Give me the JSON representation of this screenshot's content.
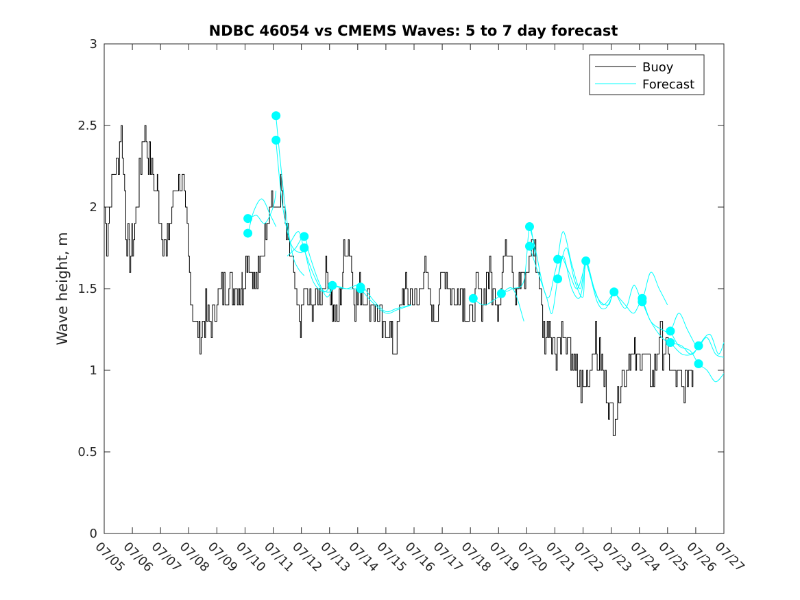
{
  "chart_data": {
    "type": "line",
    "title": "NDBC 46054 vs CMEMS Waves: 5 to 7 day forecast",
    "xlabel": "",
    "ylabel": "Wave height, m",
    "ylim": [
      0,
      3
    ],
    "yticks": [
      "0",
      "0.5",
      "1",
      "1.5",
      "2",
      "2.5",
      "3"
    ],
    "xlim_days": [
      5,
      27
    ],
    "xticks": [
      "07/05",
      "07/06",
      "07/07",
      "07/08",
      "07/09",
      "07/10",
      "07/11",
      "07/12",
      "07/13",
      "07/14",
      "07/15",
      "07/16",
      "07/17",
      "07/18",
      "07/19",
      "07/20",
      "07/21",
      "07/22",
      "07/23",
      "07/24",
      "07/25",
      "07/26",
      "07/27"
    ],
    "legend_position": "top-right",
    "legend": [
      "Buoy",
      "Forecast"
    ],
    "colors": {
      "buoy": "#000000",
      "forecast": "#00ffff",
      "axis": "#262626"
    },
    "buoy": {
      "name": "Buoy",
      "anchors": [
        [
          5.0,
          2.0
        ],
        [
          5.1,
          1.8
        ],
        [
          5.3,
          2.2
        ],
        [
          5.5,
          2.3
        ],
        [
          5.6,
          2.5
        ],
        [
          5.8,
          1.8
        ],
        [
          5.9,
          1.7
        ],
        [
          6.0,
          1.8
        ],
        [
          6.2,
          2.1
        ],
        [
          6.3,
          2.3
        ],
        [
          6.4,
          2.5
        ],
        [
          6.6,
          2.3
        ],
        [
          6.8,
          2.1
        ],
        [
          6.9,
          2.1
        ],
        [
          7.0,
          1.9
        ],
        [
          7.2,
          1.7
        ],
        [
          7.4,
          2.0
        ],
        [
          7.6,
          2.2
        ],
        [
          7.8,
          2.1
        ],
        [
          7.9,
          1.9
        ],
        [
          8.1,
          1.4
        ],
        [
          8.2,
          1.3
        ],
        [
          8.4,
          1.2
        ],
        [
          8.6,
          1.35
        ],
        [
          8.8,
          1.3
        ],
        [
          9.0,
          1.45
        ],
        [
          9.3,
          1.5
        ],
        [
          9.6,
          1.5
        ],
        [
          9.9,
          1.5
        ],
        [
          10.1,
          1.7
        ],
        [
          10.3,
          1.55
        ],
        [
          10.5,
          1.6
        ],
        [
          10.7,
          1.85
        ],
        [
          10.9,
          2.1
        ],
        [
          11.1,
          1.95
        ],
        [
          11.3,
          2.1
        ],
        [
          11.5,
          1.75
        ],
        [
          11.6,
          1.75
        ],
        [
          11.8,
          1.4
        ],
        [
          12.0,
          1.3
        ],
        [
          12.1,
          1.5
        ],
        [
          12.3,
          1.4
        ],
        [
          12.5,
          1.4
        ],
        [
          12.7,
          1.5
        ],
        [
          12.9,
          1.6
        ],
        [
          13.1,
          1.4
        ],
        [
          13.3,
          1.3
        ],
        [
          13.5,
          1.7
        ],
        [
          13.7,
          1.8
        ],
        [
          13.9,
          1.4
        ],
        [
          14.1,
          1.5
        ],
        [
          14.3,
          1.45
        ],
        [
          14.5,
          1.4
        ],
        [
          14.7,
          1.35
        ],
        [
          14.9,
          1.2
        ],
        [
          15.1,
          1.3
        ],
        [
          15.2,
          1.15
        ],
        [
          15.4,
          1.2
        ],
        [
          15.5,
          1.4
        ],
        [
          15.7,
          1.5
        ],
        [
          15.9,
          1.45
        ],
        [
          16.1,
          1.4
        ],
        [
          16.3,
          1.6
        ],
        [
          16.5,
          1.5
        ],
        [
          16.7,
          1.3
        ],
        [
          16.9,
          1.5
        ],
        [
          17.1,
          1.6
        ],
        [
          17.3,
          1.5
        ],
        [
          17.5,
          1.4
        ],
        [
          17.6,
          1.55
        ],
        [
          17.8,
          1.4
        ],
        [
          18.0,
          1.3
        ],
        [
          18.2,
          1.5
        ],
        [
          18.4,
          1.45
        ],
        [
          18.6,
          1.6
        ],
        [
          18.8,
          1.5
        ],
        [
          19.0,
          1.4
        ],
        [
          19.2,
          1.7
        ],
        [
          19.4,
          1.8
        ],
        [
          19.6,
          1.5
        ],
        [
          19.8,
          1.55
        ],
        [
          20.0,
          1.6
        ],
        [
          20.2,
          1.8
        ],
        [
          20.4,
          1.6
        ],
        [
          20.6,
          1.2
        ],
        [
          20.8,
          1.3
        ],
        [
          21.0,
          1.1
        ],
        [
          21.2,
          1.25
        ],
        [
          21.4,
          1.15
        ],
        [
          21.6,
          1.1
        ],
        [
          21.8,
          0.95
        ],
        [
          22.0,
          0.9
        ],
        [
          22.2,
          0.95
        ],
        [
          22.4,
          1.2
        ],
        [
          22.5,
          1.1
        ],
        [
          22.7,
          1.0
        ],
        [
          22.9,
          0.8
        ],
        [
          23.1,
          0.7
        ],
        [
          23.3,
          0.9
        ],
        [
          23.5,
          1.0
        ],
        [
          23.7,
          1.1
        ],
        [
          23.9,
          1.05
        ],
        [
          24.1,
          1.1
        ],
        [
          24.3,
          1.0
        ],
        [
          24.5,
          0.95
        ],
        [
          24.7,
          1.2
        ],
        [
          24.9,
          1.1
        ],
        [
          25.1,
          1.0
        ],
        [
          25.3,
          0.95
        ],
        [
          25.5,
          0.9
        ],
        [
          25.7,
          0.95
        ],
        [
          25.9,
          1.0
        ]
      ]
    },
    "forecast_runs": [
      {
        "name": "Forecast",
        "points": [
          [
            10.1,
            1.92
          ],
          [
            10.4,
            1.95
          ],
          [
            10.7,
            1.9
          ],
          [
            11.0,
            2.0
          ],
          [
            11.1,
            2.1
          ]
        ]
      },
      {
        "name": "Forecast",
        "points": [
          [
            10.1,
            1.83
          ],
          [
            10.3,
            1.97
          ],
          [
            10.6,
            2.05
          ],
          [
            10.9,
            1.95
          ],
          [
            11.1,
            1.88
          ]
        ]
      },
      {
        "name": "Forecast",
        "points": [
          [
            11.1,
            2.55
          ],
          [
            11.3,
            2.2
          ],
          [
            11.5,
            1.9
          ],
          [
            11.7,
            1.7
          ],
          [
            11.9,
            1.62
          ],
          [
            12.1,
            1.58
          ]
        ]
      },
      {
        "name": "Forecast",
        "points": [
          [
            11.1,
            2.4
          ],
          [
            11.3,
            2.05
          ],
          [
            11.5,
            1.85
          ],
          [
            11.7,
            1.75
          ],
          [
            12.0,
            1.72
          ],
          [
            12.1,
            1.75
          ]
        ]
      },
      {
        "name": "Forecast",
        "points": [
          [
            11.5,
            1.7
          ],
          [
            11.8,
            1.75
          ],
          [
            12.1,
            1.82
          ],
          [
            12.3,
            1.7
          ],
          [
            12.6,
            1.55
          ],
          [
            12.9,
            1.45
          ],
          [
            13.1,
            1.5
          ]
        ]
      },
      {
        "name": "Forecast",
        "points": [
          [
            11.6,
            1.78
          ],
          [
            11.9,
            1.85
          ],
          [
            12.1,
            1.74
          ],
          [
            12.4,
            1.6
          ],
          [
            12.7,
            1.5
          ],
          [
            13.0,
            1.48
          ],
          [
            13.1,
            1.52
          ]
        ]
      },
      {
        "name": "Forecast",
        "points": [
          [
            12.1,
            1.75
          ],
          [
            12.4,
            1.55
          ],
          [
            12.8,
            1.48
          ],
          [
            13.1,
            1.52
          ],
          [
            13.6,
            1.5
          ],
          [
            14.1,
            1.5
          ]
        ]
      },
      {
        "name": "Forecast",
        "points": [
          [
            13.1,
            1.52
          ],
          [
            13.6,
            1.5
          ],
          [
            14.1,
            1.52
          ],
          [
            14.6,
            1.42
          ],
          [
            15.0,
            1.36
          ],
          [
            15.4,
            1.38
          ],
          [
            15.9,
            1.4
          ]
        ]
      },
      {
        "name": "Forecast",
        "points": [
          [
            14.1,
            1.5
          ],
          [
            14.5,
            1.42
          ],
          [
            15.0,
            1.35
          ],
          [
            15.4,
            1.37
          ],
          [
            15.9,
            1.4
          ]
        ]
      },
      {
        "name": "Forecast",
        "points": [
          [
            18.1,
            1.44
          ],
          [
            18.5,
            1.4
          ],
          [
            19.0,
            1.45
          ],
          [
            19.5,
            1.5
          ],
          [
            19.9,
            1.3
          ]
        ]
      },
      {
        "name": "Forecast",
        "points": [
          [
            19.1,
            1.47
          ],
          [
            19.5,
            1.5
          ],
          [
            19.9,
            1.55
          ],
          [
            20.1,
            1.88
          ],
          [
            20.3,
            1.7
          ]
        ]
      },
      {
        "name": "Forecast",
        "points": [
          [
            20.1,
            1.88
          ],
          [
            20.3,
            1.75
          ],
          [
            20.6,
            1.5
          ],
          [
            20.8,
            1.45
          ],
          [
            21.0,
            1.6
          ],
          [
            21.2,
            1.7
          ],
          [
            21.5,
            1.6
          ],
          [
            21.8,
            1.5
          ],
          [
            22.1,
            1.67
          ]
        ]
      },
      {
        "name": "Forecast",
        "points": [
          [
            20.1,
            1.76
          ],
          [
            20.4,
            1.6
          ],
          [
            20.7,
            1.45
          ],
          [
            20.9,
            1.35
          ],
          [
            21.1,
            1.56
          ],
          [
            21.3,
            1.7
          ],
          [
            21.6,
            1.5
          ],
          [
            21.9,
            1.45
          ],
          [
            22.1,
            1.67
          ]
        ]
      },
      {
        "name": "Forecast",
        "points": [
          [
            21.1,
            1.68
          ],
          [
            21.3,
            1.85
          ],
          [
            21.6,
            1.65
          ],
          [
            21.9,
            1.5
          ],
          [
            22.1,
            1.67
          ],
          [
            22.4,
            1.5
          ],
          [
            22.7,
            1.4
          ],
          [
            23.1,
            1.48
          ]
        ]
      },
      {
        "name": "Forecast",
        "points": [
          [
            21.1,
            1.56
          ],
          [
            21.4,
            1.75
          ],
          [
            21.7,
            1.55
          ],
          [
            22.0,
            1.45
          ],
          [
            22.1,
            1.66
          ],
          [
            22.5,
            1.42
          ],
          [
            22.8,
            1.38
          ],
          [
            23.1,
            1.48
          ]
        ]
      },
      {
        "name": "Forecast",
        "points": [
          [
            22.1,
            1.67
          ],
          [
            22.5,
            1.45
          ],
          [
            22.9,
            1.4
          ],
          [
            23.1,
            1.48
          ],
          [
            23.5,
            1.38
          ],
          [
            23.8,
            1.52
          ],
          [
            24.1,
            1.44
          ],
          [
            24.4,
            1.6
          ],
          [
            24.7,
            1.5
          ],
          [
            25.0,
            1.4
          ]
        ]
      },
      {
        "name": "Forecast",
        "points": [
          [
            23.1,
            1.48
          ],
          [
            23.5,
            1.4
          ],
          [
            23.8,
            1.35
          ],
          [
            24.1,
            1.42
          ],
          [
            24.4,
            1.3
          ],
          [
            24.8,
            1.25
          ],
          [
            25.1,
            1.24
          ],
          [
            25.4,
            1.35
          ],
          [
            25.7,
            1.25
          ],
          [
            26.0,
            1.15
          ]
        ]
      },
      {
        "name": "Forecast",
        "points": [
          [
            24.1,
            1.42
          ],
          [
            24.4,
            1.3
          ],
          [
            24.8,
            1.2
          ],
          [
            25.1,
            1.17
          ],
          [
            25.5,
            1.15
          ],
          [
            25.8,
            1.1
          ],
          [
            26.1,
            1.14
          ],
          [
            26.4,
            1.2
          ],
          [
            26.7,
            1.1
          ],
          [
            27.0,
            1.08
          ]
        ]
      },
      {
        "name": "Forecast",
        "points": [
          [
            25.1,
            1.24
          ],
          [
            25.4,
            1.15
          ],
          [
            25.8,
            1.12
          ],
          [
            26.1,
            1.04
          ],
          [
            26.4,
            1.0
          ],
          [
            26.7,
            0.93
          ],
          [
            27.0,
            0.98
          ]
        ]
      },
      {
        "name": "Forecast",
        "points": [
          [
            25.1,
            1.17
          ],
          [
            25.5,
            1.1
          ],
          [
            25.9,
            1.1
          ],
          [
            26.1,
            1.15
          ],
          [
            26.5,
            1.22
          ],
          [
            26.8,
            1.1
          ],
          [
            27.0,
            1.17
          ]
        ]
      }
    ],
    "forecast_markers": [
      [
        10.1,
        1.93
      ],
      [
        10.1,
        1.84
      ],
      [
        11.1,
        2.56
      ],
      [
        11.1,
        2.41
      ],
      [
        12.1,
        1.82
      ],
      [
        12.1,
        1.75
      ],
      [
        13.1,
        1.52
      ],
      [
        14.1,
        1.51
      ],
      [
        14.1,
        1.5
      ],
      [
        18.1,
        1.44
      ],
      [
        19.1,
        1.47
      ],
      [
        20.1,
        1.88
      ],
      [
        20.1,
        1.76
      ],
      [
        21.1,
        1.68
      ],
      [
        21.1,
        1.56
      ],
      [
        22.1,
        1.67
      ],
      [
        23.1,
        1.48
      ],
      [
        24.1,
        1.44
      ],
      [
        24.1,
        1.42
      ],
      [
        25.1,
        1.24
      ],
      [
        25.1,
        1.17
      ],
      [
        26.1,
        1.15
      ],
      [
        26.1,
        1.04
      ]
    ]
  }
}
